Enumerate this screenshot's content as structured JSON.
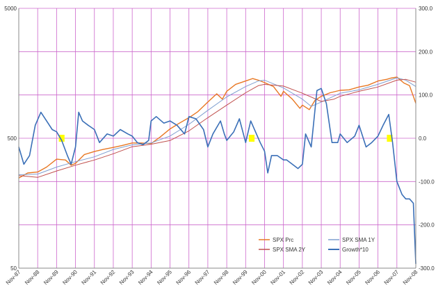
{
  "chart_data": {
    "type": "line",
    "left_axis": {
      "scale": "log",
      "ticks": [
        "5000",
        "500",
        "50"
      ],
      "tick_values": [
        5000,
        500,
        50
      ]
    },
    "right_axis": {
      "scale": "linear",
      "range": [
        -300,
        300
      ],
      "ticks": [
        "300.0",
        "200.0",
        "100.0",
        "0.0",
        "-100.0",
        "-200.0",
        "-300.0"
      ],
      "tick_values": [
        300,
        200,
        100,
        0,
        -100,
        -200,
        -300
      ]
    },
    "x_ticks": [
      "Nov-87",
      "Nov-88",
      "Nov-89",
      "Nov-90",
      "Nov-91",
      "Nov-92",
      "Nov-93",
      "Nov-94",
      "Nov-95",
      "Nov-96",
      "Nov-97",
      "Nov-98",
      "Nov-99",
      "Nov-00",
      "Nov-01",
      "Nov-02",
      "Nov-03",
      "Nov-04",
      "Nov-05",
      "Nov-06",
      "Nov-07",
      "Nov-08"
    ],
    "x_range": [
      1987.83,
      2008.83
    ],
    "grid": true,
    "grid_color": "#cc66cc",
    "legend_placement": "bottom-right",
    "series": [
      {
        "name": "SPX Prc",
        "axis": "left",
        "color": "#e87722",
        "x": [
          1987.83,
          1988.3,
          1988.83,
          1989.3,
          1989.83,
          1990.3,
          1990.6,
          1990.83,
          1991.3,
          1991.83,
          1992.3,
          1992.83,
          1993.3,
          1993.83,
          1994.3,
          1994.83,
          1995.3,
          1995.83,
          1996.3,
          1996.83,
          1997.3,
          1997.83,
          1998.3,
          1998.6,
          1998.83,
          1999.3,
          1999.83,
          2000.2,
          2000.5,
          2000.83,
          2001.3,
          2001.7,
          2001.83,
          2002.3,
          2002.7,
          2002.83,
          2003.2,
          2003.5,
          2003.83,
          2004.3,
          2004.83,
          2005.3,
          2005.83,
          2006.3,
          2006.83,
          2007.3,
          2007.5,
          2007.83,
          2008.2,
          2008.5,
          2008.7,
          2008.83
        ],
        "y": [
          247,
          270,
          275,
          300,
          345,
          340,
          310,
          320,
          375,
          395,
          410,
          425,
          440,
          460,
          460,
          455,
          510,
          590,
          650,
          720,
          800,
          950,
          1100,
          1000,
          1150,
          1300,
          1380,
          1440,
          1400,
          1340,
          1250,
          1050,
          1150,
          1000,
          850,
          900,
          830,
          980,
          1050,
          1120,
          1170,
          1180,
          1240,
          1280,
          1380,
          1420,
          1450,
          1480,
          1330,
          1270,
          1050,
          930
        ]
      },
      {
        "name": "SPX SMA 1Y",
        "axis": "left",
        "color": "#7f9fd0",
        "x": [
          1987.83,
          1988.83,
          1989.83,
          1990.83,
          1991.83,
          1992.83,
          1993.83,
          1994.83,
          1995.83,
          1996.83,
          1997.83,
          1998.83,
          1999.83,
          2000.5,
          2000.83,
          2001.83,
          2002.83,
          2003.3,
          2003.83,
          2004.83,
          2005.83,
          2006.83,
          2007.83,
          2008.3,
          2008.83
        ],
        "y": [
          262,
          265,
          300,
          330,
          360,
          410,
          445,
          460,
          520,
          640,
          820,
          1040,
          1250,
          1380,
          1400,
          1220,
          1000,
          880,
          950,
          1110,
          1180,
          1300,
          1460,
          1400,
          1250
        ]
      },
      {
        "name": "SPX SMA 2Y",
        "axis": "left",
        "color": "#c0504d",
        "x": [
          1987.83,
          1988.83,
          1989.83,
          1990.83,
          1991.83,
          1992.83,
          1993.83,
          1994.83,
          1995.83,
          1996.83,
          1997.83,
          1998.83,
          1999.83,
          2000.5,
          2000.83,
          2001.83,
          2002.83,
          2003.83,
          2004.5,
          2004.83,
          2005.83,
          2006.83,
          2007.83,
          2008.3,
          2008.83
        ],
        "y": [
          258,
          250,
          280,
          310,
          340,
          380,
          430,
          450,
          480,
          570,
          720,
          900,
          1120,
          1270,
          1300,
          1260,
          1110,
          960,
          1000,
          1050,
          1150,
          1240,
          1400,
          1420,
          1350
        ]
      },
      {
        "name": "Growth*10",
        "axis": "right",
        "color": "#3a6fb7",
        "x": [
          1987.83,
          1988.1,
          1988.4,
          1988.7,
          1989.0,
          1989.3,
          1989.6,
          1989.83,
          1990.1,
          1990.4,
          1990.6,
          1990.83,
          1991.0,
          1991.2,
          1991.5,
          1991.83,
          1992.1,
          1992.5,
          1992.83,
          1993.2,
          1993.6,
          1993.83,
          1994.1,
          1994.4,
          1994.7,
          1994.83,
          1995.1,
          1995.5,
          1995.83,
          1996.2,
          1996.6,
          1996.83,
          1997.2,
          1997.6,
          1997.83,
          1998.1,
          1998.5,
          1998.7,
          1998.83,
          1999.2,
          1999.5,
          1999.83,
          2000.1,
          2000.4,
          2000.6,
          2000.83,
          2001.0,
          2001.2,
          2001.5,
          2001.83,
          2002.0,
          2002.3,
          2002.6,
          2002.83,
          2003.0,
          2003.3,
          2003.6,
          2003.83,
          2004.1,
          2004.4,
          2004.7,
          2004.83,
          2005.2,
          2005.6,
          2005.83,
          2006.2,
          2006.5,
          2006.83,
          2007.1,
          2007.4,
          2007.6,
          2007.83,
          2008.1,
          2008.3,
          2008.5,
          2008.7,
          2008.83
        ],
        "y": [
          -20,
          -60,
          -40,
          30,
          60,
          40,
          20,
          15,
          -5,
          -40,
          -60,
          -20,
          60,
          40,
          30,
          20,
          -10,
          10,
          5,
          20,
          10,
          5,
          -10,
          -15,
          -5,
          40,
          50,
          35,
          40,
          30,
          10,
          50,
          45,
          20,
          -20,
          10,
          40,
          10,
          -5,
          15,
          45,
          -10,
          40,
          10,
          -10,
          -30,
          -80,
          -40,
          -40,
          -50,
          -50,
          -60,
          -70,
          -60,
          10,
          -20,
          110,
          115,
          80,
          -10,
          -10,
          10,
          -10,
          5,
          30,
          -20,
          -10,
          5,
          30,
          55,
          -10,
          -100,
          -130,
          -140,
          -140,
          -150,
          -290
        ]
      }
    ],
    "highlights": [
      {
        "x_start": 1989.95,
        "x_end": 1990.25,
        "y": 0,
        "color": "#ffff00"
      },
      {
        "x_start": 2000.0,
        "x_end": 2000.3,
        "y": 0,
        "color": "#ffff00"
      },
      {
        "x_start": 2007.3,
        "x_end": 2007.6,
        "y": 0,
        "color": "#ffff00"
      }
    ]
  }
}
